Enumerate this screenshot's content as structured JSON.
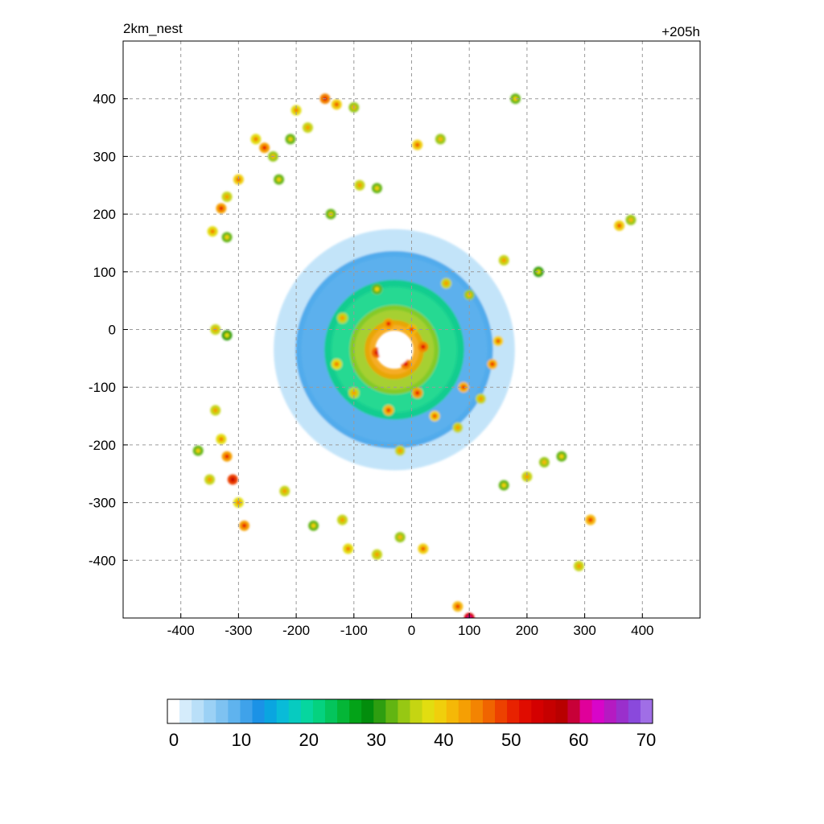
{
  "chart_data": {
    "type": "heatmap",
    "title_left": "2km_nest",
    "title_right": "+205h",
    "xlabel": "",
    "ylabel": "",
    "xlim": [
      -500,
      500
    ],
    "ylim": [
      -500,
      500
    ],
    "xticks": [
      -400,
      -300,
      -200,
      -100,
      0,
      100,
      200,
      300,
      400
    ],
    "yticks": [
      -400,
      -300,
      -200,
      -100,
      0,
      100,
      200,
      300,
      400
    ],
    "grid": true,
    "eye_center": [
      -30,
      -35
    ],
    "eye_radius": 28,
    "colorbar": {
      "min": 0,
      "max": 70,
      "step": 2,
      "ticks": [
        0,
        10,
        20,
        30,
        40,
        50,
        60,
        70
      ],
      "colors": [
        "#ffffff",
        "#d5ecfb",
        "#b9dff8",
        "#9bd1f5",
        "#7ec2f1",
        "#5fb3ee",
        "#3fa2ea",
        "#1b92e6",
        "#0aa5e0",
        "#09bbd8",
        "#07cbc0",
        "#06d69f",
        "#05d27f",
        "#04c55c",
        "#04b637",
        "#03a318",
        "#028d0c",
        "#2e9e10",
        "#62b512",
        "#97c813",
        "#c5d512",
        "#e2dd10",
        "#f0cf0c",
        "#f5b807",
        "#f59f04",
        "#f38402",
        "#f06400",
        "#ed4100",
        "#e82200",
        "#e00c00",
        "#d40000",
        "#c60000",
        "#b80000",
        "#c80038",
        "#e0009a",
        "#d805c9",
        "#b51ac2",
        "#9a2fcc",
        "#8a49dc",
        "#a06ee6"
      ]
    },
    "rings": [
      {
        "r": 42,
        "w": 18,
        "v": 48
      },
      {
        "r": 60,
        "w": 34,
        "v": 38
      },
      {
        "r": 95,
        "w": 52,
        "v": 24
      },
      {
        "r": 140,
        "w": 62,
        "v": 12
      },
      {
        "r": 185,
        "w": 48,
        "v": 5
      }
    ],
    "cells": [
      [
        -270,
        330,
        42
      ],
      [
        -255,
        315,
        48
      ],
      [
        -240,
        300,
        38
      ],
      [
        -200,
        380,
        42
      ],
      [
        -150,
        400,
        50
      ],
      [
        -130,
        390,
        44
      ],
      [
        -100,
        385,
        38
      ],
      [
        -180,
        350,
        40
      ],
      [
        -210,
        330,
        36
      ],
      [
        -230,
        260,
        36
      ],
      [
        -300,
        260,
        44
      ],
      [
        -320,
        230,
        40
      ],
      [
        -330,
        210,
        48
      ],
      [
        -345,
        170,
        42
      ],
      [
        -320,
        160,
        36
      ],
      [
        -340,
        0,
        40
      ],
      [
        -320,
        -10,
        34
      ],
      [
        -340,
        -140,
        40
      ],
      [
        -330,
        -190,
        42
      ],
      [
        -320,
        -220,
        48
      ],
      [
        -310,
        -260,
        54
      ],
      [
        -300,
        -300,
        42
      ],
      [
        -290,
        -340,
        48
      ],
      [
        -350,
        -260,
        40
      ],
      [
        -370,
        -210,
        36
      ],
      [
        -90,
        250,
        40
      ],
      [
        -60,
        245,
        36
      ],
      [
        10,
        320,
        44
      ],
      [
        50,
        330,
        38
      ],
      [
        -20,
        -210,
        40
      ],
      [
        -110,
        -380,
        42
      ],
      [
        -60,
        -390,
        40
      ],
      [
        20,
        -380,
        44
      ],
      [
        -20,
        -360,
        38
      ],
      [
        100,
        -500,
        60
      ],
      [
        80,
        -480,
        46
      ],
      [
        160,
        -270,
        36
      ],
      [
        200,
        -255,
        40
      ],
      [
        230,
        -230,
        38
      ],
      [
        260,
        -220,
        36
      ],
      [
        290,
        -410,
        40
      ],
      [
        310,
        -330,
        46
      ],
      [
        360,
        180,
        44
      ],
      [
        380,
        190,
        38
      ],
      [
        220,
        100,
        34
      ],
      [
        160,
        120,
        40
      ],
      [
        180,
        400,
        36
      ],
      [
        -120,
        -330,
        40
      ],
      [
        -170,
        -340,
        36
      ],
      [
        -220,
        -280,
        40
      ],
      [
        -140,
        200,
        36
      ],
      [
        -40,
        -140,
        46
      ],
      [
        40,
        -150,
        44
      ],
      [
        80,
        -170,
        40
      ],
      [
        120,
        -120,
        40
      ],
      [
        140,
        -60,
        46
      ],
      [
        150,
        -20,
        44
      ],
      [
        100,
        60,
        38
      ],
      [
        60,
        80,
        40
      ],
      [
        -60,
        70,
        36
      ],
      [
        -120,
        20,
        40
      ],
      [
        -130,
        -60,
        42
      ],
      [
        -100,
        -110,
        40
      ],
      [
        10,
        -110,
        48
      ],
      [
        90,
        -100,
        46
      ],
      [
        -60,
        -40,
        52
      ],
      [
        -10,
        -60,
        50
      ],
      [
        20,
        -30,
        50
      ],
      [
        -40,
        10,
        48
      ],
      [
        0,
        0,
        46
      ]
    ]
  }
}
